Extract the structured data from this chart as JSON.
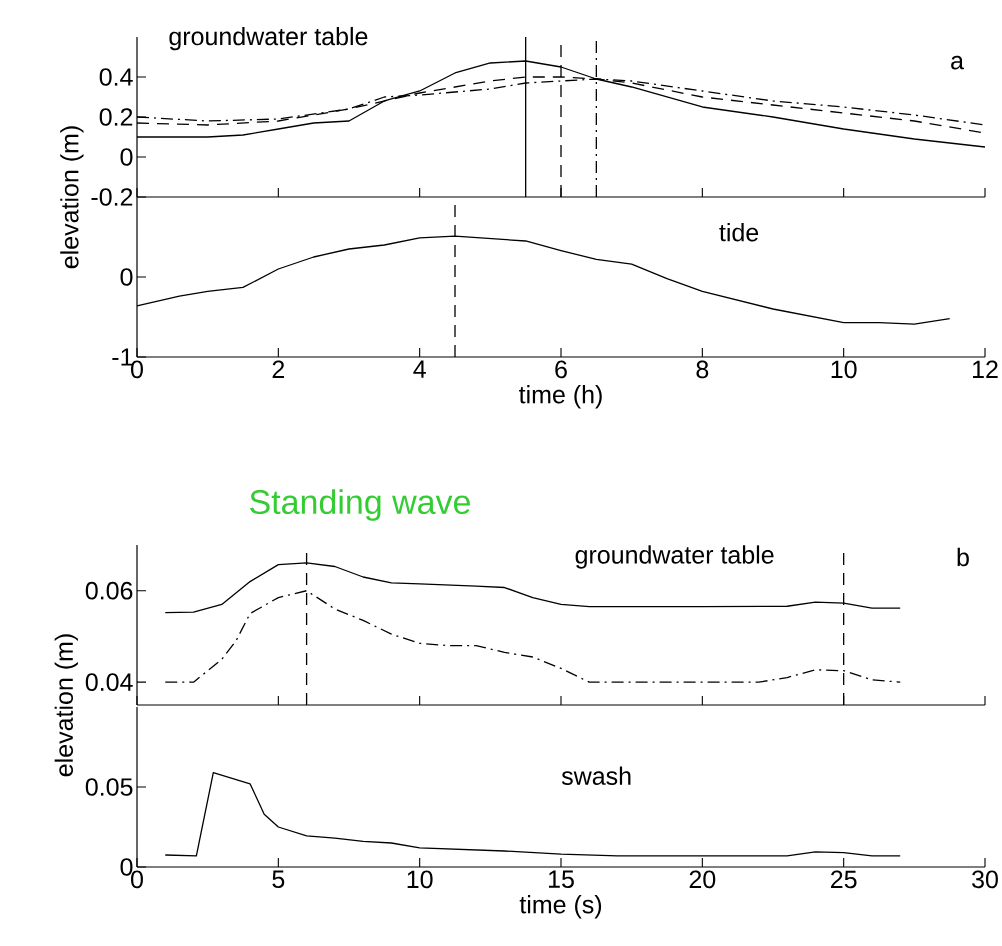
{
  "chart_data": [
    {
      "type": "line",
      "annotations": [
        "groundwater table",
        "a"
      ],
      "xlim": [
        0,
        12
      ],
      "xticks": [
        0,
        2,
        4,
        6,
        8,
        10,
        12
      ],
      "ylim": [
        -0.2,
        0.6
      ],
      "yticks": [
        -0.2,
        0,
        0.2,
        0.4
      ],
      "ylabel": "elevation (m)",
      "tick_labels": "y",
      "series": [
        {
          "color": "#000000",
          "line_style": "solid",
          "x": [
            0,
            1,
            1.5,
            2,
            2.5,
            3,
            3.5,
            4,
            4.5,
            5,
            5.5,
            6,
            6.5,
            7,
            8,
            9,
            10,
            11,
            12
          ],
          "values": [
            0.1,
            0.1,
            0.11,
            0.14,
            0.17,
            0.18,
            0.28,
            0.33,
            0.42,
            0.47,
            0.48,
            0.45,
            0.39,
            0.35,
            0.25,
            0.2,
            0.14,
            0.09,
            0.05
          ]
        },
        {
          "color": "#000000",
          "line_style": "dashed",
          "x": [
            0,
            1,
            2,
            3,
            4,
            5,
            5.5,
            6,
            6.5,
            7,
            8,
            9,
            10,
            11,
            12
          ],
          "values": [
            0.17,
            0.16,
            0.18,
            0.24,
            0.32,
            0.38,
            0.4,
            0.4,
            0.39,
            0.37,
            0.3,
            0.26,
            0.22,
            0.18,
            0.12
          ]
        },
        {
          "color": "#000000",
          "line_style": "dashdot",
          "x": [
            0,
            1,
            2,
            3,
            3.5,
            4,
            5,
            5.5,
            6,
            6.5,
            7,
            8,
            9,
            10,
            11,
            12
          ],
          "values": [
            0.2,
            0.18,
            0.19,
            0.24,
            0.3,
            0.31,
            0.34,
            0.37,
            0.38,
            0.39,
            0.38,
            0.33,
            0.28,
            0.25,
            0.21,
            0.16
          ]
        }
      ],
      "ref_lines": [
        {
          "axis": "x",
          "value": 5.5,
          "color": "#000000",
          "line_style": "solid"
        },
        {
          "axis": "x",
          "value": 6,
          "color": "#000000",
          "line_style": "dashed"
        },
        {
          "axis": "x",
          "value": 6.5,
          "color": "#000000",
          "line_style": "dashdot"
        }
      ]
    },
    {
      "type": "line",
      "annotations": [
        "tide"
      ],
      "xlabel": "time (h)",
      "xlim": [
        0,
        12
      ],
      "xticks": [
        0,
        2,
        4,
        6,
        8,
        10,
        12
      ],
      "ylim": [
        -1,
        1
      ],
      "yticks": [
        -1,
        0
      ],
      "series": [
        {
          "color": "#000000",
          "line_style": "solid",
          "x": [
            0,
            0.6,
            1,
            1.5,
            2,
            2.5,
            3,
            3.5,
            4,
            4.5,
            5.5,
            6,
            6.5,
            7,
            7.5,
            8,
            9,
            10,
            10.5,
            11,
            11.5
          ],
          "values": [
            -0.36,
            -0.24,
            -0.18,
            -0.13,
            0.1,
            0.25,
            0.35,
            0.4,
            0.49,
            0.51,
            0.45,
            0.33,
            0.22,
            0.16,
            -0.02,
            -0.18,
            -0.4,
            -0.57,
            -0.57,
            -0.59,
            -0.52
          ]
        }
      ],
      "ref_lines": [
        {
          "axis": "x",
          "value": 4.5,
          "color": "#000000",
          "line_style": "dashed"
        }
      ]
    },
    {
      "type": "line",
      "title": "Standing wave",
      "annotations": [
        "groundwater table",
        "b"
      ],
      "xlim": [
        0,
        30
      ],
      "xticks": [
        0,
        5,
        10,
        15,
        20,
        25,
        30
      ],
      "ylim": [
        0.035,
        0.07
      ],
      "yticks": [
        0.04,
        0.06
      ],
      "ylabel": "elevation (m)",
      "tick_labels": "y",
      "series": [
        {
          "color": "#000000",
          "line_style": "solid",
          "x": [
            1,
            2,
            3,
            4,
            5,
            6,
            7,
            8,
            9,
            10,
            12,
            13,
            14,
            15,
            16,
            20,
            23,
            24,
            25,
            26,
            27
          ],
          "values": [
            0.0552,
            0.0553,
            0.057,
            0.062,
            0.0657,
            0.0661,
            0.0653,
            0.063,
            0.0617,
            0.0615,
            0.061,
            0.0607,
            0.0585,
            0.057,
            0.0565,
            0.0565,
            0.0566,
            0.0575,
            0.0573,
            0.0562,
            0.0562
          ]
        },
        {
          "color": "#000000",
          "line_style": "dashdot",
          "x": [
            1,
            2,
            3,
            3.5,
            4,
            5,
            6,
            7,
            8,
            9,
            10,
            11,
            12,
            13,
            14,
            15,
            16,
            20,
            22,
            23,
            24,
            25,
            26,
            27
          ],
          "values": [
            0.04,
            0.04,
            0.045,
            0.049,
            0.055,
            0.0585,
            0.06,
            0.056,
            0.0535,
            0.0505,
            0.0485,
            0.048,
            0.048,
            0.0465,
            0.0455,
            0.043,
            0.04,
            0.04,
            0.04,
            0.041,
            0.0427,
            0.0425,
            0.0405,
            0.04
          ]
        }
      ],
      "ref_lines": [
        {
          "axis": "x",
          "value": 6,
          "color": "#000000",
          "line_style": "dashed"
        },
        {
          "axis": "x",
          "value": 25,
          "color": "#000000",
          "line_style": "dashed"
        }
      ]
    },
    {
      "type": "line",
      "annotations": [
        "swash"
      ],
      "xlabel": "time (s)",
      "xlim": [
        0,
        30
      ],
      "xticks": [
        0,
        5,
        10,
        15,
        20,
        25,
        30
      ],
      "ylim": [
        0,
        0.1
      ],
      "yticks": [
        0,
        0.05
      ],
      "series": [
        {
          "color": "#000000",
          "line_style": "solid",
          "x": [
            1,
            2.1,
            2.7,
            4,
            4.5,
            5,
            6,
            7,
            8,
            9,
            10,
            13,
            15,
            17,
            23,
            24,
            25,
            26,
            27
          ],
          "values": [
            0.0075,
            0.007,
            0.059,
            0.052,
            0.033,
            0.025,
            0.0195,
            0.018,
            0.016,
            0.015,
            0.012,
            0.01,
            0.008,
            0.007,
            0.007,
            0.0095,
            0.009,
            0.007,
            0.007
          ]
        }
      ]
    }
  ]
}
